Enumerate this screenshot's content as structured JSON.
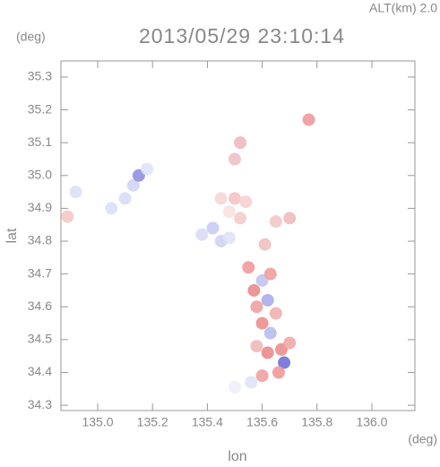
{
  "chart_data": {
    "type": "scatter",
    "title": "2013/05/29 23:10:14",
    "subtitle": "ALT(km) 2.0",
    "y_unit": "(deg)",
    "x_unit": "(deg)",
    "xlabel": "lon",
    "ylabel": "lat",
    "xlim": [
      134.866,
      136.157
    ],
    "ylim": [
      34.284,
      35.349
    ],
    "xticks": [
      {
        "value": 135,
        "label": "135.0"
      },
      135.2,
      135.4,
      135.6,
      135.8,
      {
        "value": 136,
        "label": "136.0"
      }
    ],
    "yticks": [
      {
        "value": 34.3,
        "label": "34.3"
      },
      34.4,
      34.5,
      34.6,
      34.7,
      34.8,
      34.9,
      {
        "value": 35,
        "label": "35.0"
      },
      35.1,
      35.2,
      35.3
    ],
    "x": [
      134.92,
      134.89,
      135.05,
      135.1,
      135.13,
      135.15,
      135.18,
      135.38,
      135.42,
      135.45,
      135.48,
      135.45,
      135.5,
      135.54,
      135.48,
      135.52,
      135.5,
      135.52,
      135.77,
      135.61,
      135.65,
      135.7,
      135.55,
      135.57,
      135.6,
      135.63,
      135.58,
      135.62,
      135.65,
      135.6,
      135.63,
      135.58,
      135.62,
      135.67,
      135.7,
      135.68,
      135.66,
      135.6,
      135.56,
      135.5
    ],
    "y": [
      34.95,
      34.875,
      34.9,
      34.93,
      34.97,
      35.0,
      35.02,
      34.82,
      34.84,
      34.8,
      34.81,
      34.93,
      34.93,
      34.92,
      34.89,
      34.87,
      35.05,
      35.1,
      35.17,
      34.79,
      34.86,
      34.87,
      34.72,
      34.65,
      34.68,
      34.7,
      34.6,
      34.62,
      34.58,
      34.55,
      34.52,
      34.48,
      34.46,
      34.47,
      34.49,
      34.43,
      34.4,
      34.39,
      34.37,
      34.355
    ],
    "colors": [
      "#dde0f8",
      "#f4c8c8",
      "#dcdff7",
      "#d8dbf6",
      "#d0d4f5",
      "#9090e0",
      "#e0e2f8",
      "#d8dbf5",
      "#c8ccf2",
      "#cfd2f3",
      "#e0e2f8",
      "#f6d6d6",
      "#f3c4c4",
      "#f6d0d0",
      "#f8e0e0",
      "#f4cccc",
      "#f0c0c8",
      "#f0b8c0",
      "#ee9a9a",
      "#f0c0c0",
      "#f3c8c8",
      "#f0bcbc",
      "#f29a9a",
      "#e88c8c",
      "#c0c4f0",
      "#ef9ea0",
      "#f0a0a0",
      "#a8acec",
      "#f0b0b0",
      "#ec8e8e",
      "#b8bcf0",
      "#f0b8b8",
      "#eb8a8a",
      "#ed8f8f",
      "#f0a8a8",
      "#7070d8",
      "#f09898",
      "#f0a0a0",
      "#e0e2f8",
      "#eeeefa"
    ]
  }
}
